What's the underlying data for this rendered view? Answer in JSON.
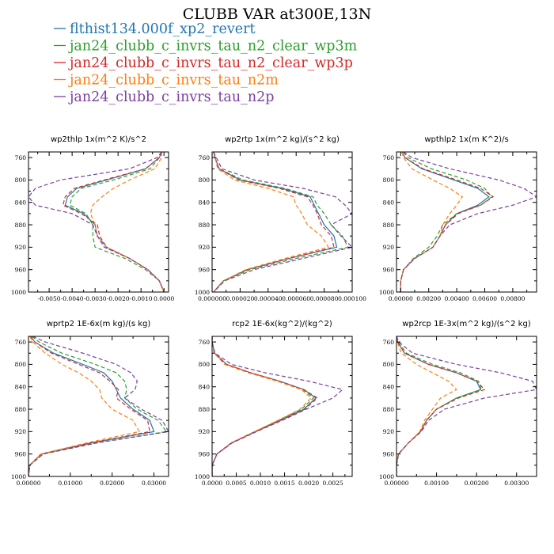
{
  "figure_title": "CLUBB VAR at300E,13N",
  "legend": [
    {
      "name": "flthist134.000f_xp2_revert",
      "color": "#1f77b4",
      "dash": "solid"
    },
    {
      "name": "jan24_clubb_c_invrs_tau_n2_clear_wp3m",
      "color": "#2ca02c",
      "dash": "dashed"
    },
    {
      "name": "jan24_clubb_c_invrs_tau_n2_clear_wp3p",
      "color": "#d62728",
      "dash": "dashed"
    },
    {
      "name": "jan24_clubb_c_invrs_tau_n2m",
      "color": "#ff7f0e",
      "dash": "dashed"
    },
    {
      "name": "jan24_clubb_c_invrs_tau_n2p",
      "color": "#7b3f9e",
      "dash": "dashed"
    }
  ],
  "chart_data": [
    {
      "type": "line",
      "title": "wp2thlp   1x(m^2 K)/s^2",
      "xlim": [
        -0.0059,
        0.0002
      ],
      "ylim": [
        1000,
        750
      ],
      "xticks": [
        -0.005,
        -0.004,
        -0.003,
        -0.002,
        -0.001,
        0
      ],
      "xtick_labels": [
        "-0.0050",
        "-0.0040",
        "-0.0030",
        "-0.0020",
        "-0.0010",
        "0.0000"
      ],
      "yticks": [
        760,
        800,
        840,
        880,
        920,
        960,
        1000
      ],
      "y": [
        750,
        760,
        780,
        800,
        815,
        830,
        845,
        860,
        880,
        900,
        920,
        940,
        960,
        980,
        1000
      ],
      "series": [
        {
          "values": [
            -0.0001,
            -0.0002,
            -0.0008,
            -0.0025,
            -0.0038,
            -0.0042,
            -0.0043,
            -0.0035,
            -0.003,
            -0.0029,
            -0.0025,
            -0.0015,
            -0.0007,
            -0.0002,
            0.0
          ]
        },
        {
          "values": [
            -0.0001,
            -0.0002,
            -0.0006,
            -0.0022,
            -0.0036,
            -0.004,
            -0.0041,
            -0.0034,
            -0.0031,
            -0.0031,
            -0.003,
            -0.0017,
            -0.0008,
            -0.0002,
            0.0
          ]
        },
        {
          "values": [
            -0.0001,
            -0.0002,
            -0.0008,
            -0.0026,
            -0.0039,
            -0.0043,
            -0.0044,
            -0.0036,
            -0.0029,
            -0.0028,
            -0.0025,
            -0.0015,
            -0.0007,
            -0.0002,
            0.0
          ]
        },
        {
          "values": [
            -0.0001,
            -0.0001,
            -0.0004,
            -0.0015,
            -0.0022,
            -0.0027,
            -0.0031,
            -0.0032,
            -0.003,
            -0.0029,
            -0.0025,
            -0.0015,
            -0.0007,
            -0.0002,
            0.0
          ]
        },
        {
          "values": [
            -0.0001,
            -0.0003,
            -0.0015,
            -0.0045,
            -0.0056,
            -0.0059,
            -0.0056,
            -0.004,
            -0.0031,
            -0.0029,
            -0.0026,
            -0.0015,
            -0.0007,
            -0.0002,
            0.0
          ]
        }
      ]
    },
    {
      "type": "line",
      "title": "wp2rtp   1x(m^2 kg)/(s^2 kg)",
      "xlim": [
        0,
        0.0001
      ],
      "ylim": [
        1000,
        750
      ],
      "xticks": [
        0,
        2e-05,
        4e-05,
        6e-05,
        8e-05,
        0.0001
      ],
      "xtick_labels": [
        "0.000000",
        "0.000020",
        "0.000040",
        "0.000060",
        "0.000080",
        "0.000100"
      ],
      "yticks": [
        760,
        800,
        840,
        880,
        920,
        960,
        1000
      ],
      "y": [
        750,
        760,
        780,
        800,
        815,
        830,
        845,
        860,
        880,
        900,
        920,
        940,
        960,
        980,
        1000
      ],
      "series": [
        {
          "values": [
            1e-06,
            2e-06,
            5e-06,
            2e-05,
            5e-05,
            7e-05,
            7.3e-05,
            7.6e-05,
            8e-05,
            8.7e-05,
            8.9e-05,
            5.5e-05,
            2.5e-05,
            8e-06,
            1e-06
          ]
        },
        {
          "values": [
            1e-06,
            2e-06,
            5e-06,
            2.2e-05,
            5.2e-05,
            7.2e-05,
            7.5e-05,
            8e-05,
            8.5e-05,
            9.3e-05,
            9.7e-05,
            6e-05,
            2.7e-05,
            8e-06,
            1e-06
          ]
        },
        {
          "values": [
            1e-06,
            2e-06,
            5e-06,
            1.9e-05,
            4.8e-05,
            6.8e-05,
            7.2e-05,
            7.5e-05,
            7.8e-05,
            8.5e-05,
            8.7e-05,
            5.5e-05,
            2.5e-05,
            8e-06,
            1e-06
          ]
        },
        {
          "values": [
            1e-06,
            2e-06,
            4e-06,
            1.6e-05,
            4e-05,
            5.8e-05,
            6e-05,
            6.4e-05,
            6.8e-05,
            7.8e-05,
            8.3e-05,
            5.2e-05,
            2.4e-05,
            8e-06,
            1e-06
          ]
        },
        {
          "values": [
            1e-06,
            3e-06,
            7e-06,
            3e-05,
            6.5e-05,
            8.8e-05,
            9.5e-05,
            0.0001,
            8.5e-05,
            9.2e-05,
            0.0001,
            6.5e-05,
            3e-05,
            9e-06,
            1e-06
          ]
        }
      ]
    },
    {
      "type": "line",
      "title": "wpthlp2   1x(m K^2)/s",
      "xlim": [
        -0.0003,
        0.0097
      ],
      "ylim": [
        1000,
        750
      ],
      "xticks": [
        0,
        0.002,
        0.004,
        0.006,
        0.008
      ],
      "xtick_labels": [
        "0.00000",
        "0.00200",
        "0.00400",
        "0.00600",
        "0.00800"
      ],
      "yticks": [
        760,
        800,
        840,
        880,
        920,
        960,
        1000
      ],
      "y": [
        750,
        760,
        780,
        800,
        815,
        830,
        845,
        860,
        880,
        900,
        920,
        940,
        960,
        980,
        1000
      ],
      "series": [
        {
          "values": [
            0.0001,
            0.0003,
            0.0015,
            0.0038,
            0.0055,
            0.0063,
            0.0055,
            0.004,
            0.0032,
            0.0028,
            0.0023,
            0.001,
            0.0002,
            0.0,
            0.0
          ]
        },
        {
          "values": [
            0.0002,
            0.0005,
            0.0022,
            0.0047,
            0.006,
            0.0065,
            0.0057,
            0.004,
            0.003,
            0.0026,
            0.002,
            0.0009,
            0.0002,
            0.0,
            0.0
          ]
        },
        {
          "values": [
            0.0001,
            0.0003,
            0.0016,
            0.004,
            0.0057,
            0.0066,
            0.0057,
            0.0041,
            0.0032,
            0.0028,
            0.0023,
            0.001,
            0.0002,
            0.0,
            0.0
          ]
        },
        {
          "values": [
            0.0001,
            0.0002,
            0.0008,
            0.0023,
            0.0035,
            0.0044,
            0.004,
            0.0035,
            0.003,
            0.0028,
            0.0023,
            0.001,
            0.0002,
            0.0,
            0.0
          ]
        },
        {
          "values": [
            0.0002,
            0.0008,
            0.0035,
            0.007,
            0.0088,
            0.0097,
            0.008,
            0.0055,
            0.0035,
            0.0028,
            0.0023,
            0.001,
            0.0002,
            0.0,
            0.0
          ]
        }
      ]
    },
    {
      "type": "line",
      "title": "wprtp2   1E-6x(m kg)/(s kg)",
      "xlim": [
        0,
        0.0335
      ],
      "ylim": [
        1000,
        750
      ],
      "xticks": [
        0,
        0.01,
        0.02,
        0.03
      ],
      "xtick_labels": [
        "0.00000",
        "0.01000",
        "0.02000",
        "0.03000"
      ],
      "yticks": [
        760,
        800,
        840,
        880,
        920,
        960,
        1000
      ],
      "y": [
        750,
        760,
        780,
        800,
        815,
        830,
        845,
        860,
        880,
        900,
        920,
        940,
        960,
        980,
        1000
      ],
      "series": [
        {
          "values": [
            0.0005,
            0.0015,
            0.006,
            0.013,
            0.018,
            0.02,
            0.021,
            0.022,
            0.025,
            0.029,
            0.03,
            0.015,
            0.003,
            0.0003,
            0.0
          ]
        },
        {
          "values": [
            0.0008,
            0.0025,
            0.008,
            0.016,
            0.021,
            0.023,
            0.0235,
            0.023,
            0.026,
            0.031,
            0.033,
            0.016,
            0.0035,
            0.0003,
            0.0
          ]
        },
        {
          "values": [
            0.0005,
            0.0015,
            0.0055,
            0.012,
            0.017,
            0.0195,
            0.0215,
            0.021,
            0.0245,
            0.0285,
            0.029,
            0.015,
            0.003,
            0.0003,
            0.0
          ]
        },
        {
          "values": [
            0.0003,
            0.001,
            0.004,
            0.008,
            0.012,
            0.015,
            0.017,
            0.0175,
            0.02,
            0.025,
            0.0265,
            0.014,
            0.003,
            0.0003,
            0.0
          ]
        },
        {
          "values": [
            0.001,
            0.004,
            0.013,
            0.021,
            0.0245,
            0.026,
            0.0255,
            0.023,
            0.027,
            0.032,
            0.0335,
            0.0165,
            0.0035,
            0.0003,
            0.0
          ]
        }
      ]
    },
    {
      "type": "line",
      "title": "rcp2   1E-6x(kg^2)/(kg^2)",
      "xlim": [
        0,
        0.0029
      ],
      "ylim": [
        1000,
        750
      ],
      "xticks": [
        0,
        0.0005,
        0.001,
        0.0015,
        0.002,
        0.0025
      ],
      "xtick_labels": [
        "0.0000",
        "0.0005",
        "0.0010",
        "0.0015",
        "0.0020",
        "0.0025"
      ],
      "yticks": [
        760,
        800,
        840,
        880,
        920,
        960,
        1000
      ],
      "y": [
        750,
        760,
        780,
        800,
        815,
        830,
        845,
        860,
        880,
        900,
        920,
        940,
        960,
        980,
        1000
      ],
      "series": [
        {
          "values": [
            0.0,
            0.0,
            5e-05,
            0.0003,
            0.0008,
            0.0014,
            0.0019,
            0.00215,
            0.0019,
            0.0014,
            0.0009,
            0.0004,
            0.0001,
            0.0,
            0.0
          ]
        },
        {
          "values": [
            0.0,
            0.0,
            5e-05,
            0.00028,
            0.00078,
            0.00138,
            0.00188,
            0.0021,
            0.00185,
            0.00138,
            0.00088,
            0.0004,
            0.0001,
            0.0,
            0.0
          ]
        },
        {
          "values": [
            0.0,
            0.0,
            5e-05,
            0.0003,
            0.0008,
            0.0014,
            0.0019,
            0.00218,
            0.00192,
            0.00142,
            0.0009,
            0.0004,
            0.0001,
            0.0,
            0.0
          ]
        },
        {
          "values": [
            0.0,
            0.0,
            4e-05,
            0.00026,
            0.00075,
            0.00135,
            0.00185,
            0.00205,
            0.00182,
            0.00136,
            0.00088,
            0.0004,
            0.0001,
            0.0,
            0.0
          ]
        },
        {
          "values": [
            0.0,
            0.0,
            6e-05,
            0.0004,
            0.0011,
            0.002,
            0.0027,
            0.0025,
            0.00195,
            0.00145,
            0.00092,
            0.00042,
            0.0001,
            0.0,
            0.0
          ]
        }
      ]
    },
    {
      "type": "line",
      "title": "wp2rcp   1E-3x(m^2 kg)/(s^2 kg)",
      "xlim": [
        0,
        0.0035
      ],
      "ylim": [
        1000,
        750
      ],
      "xticks": [
        0,
        0.001,
        0.002,
        0.003
      ],
      "xtick_labels": [
        "0.00000",
        "0.00100",
        "0.00200",
        "0.00300"
      ],
      "yticks": [
        760,
        800,
        840,
        880,
        920,
        960,
        1000
      ],
      "y": [
        750,
        760,
        780,
        800,
        815,
        830,
        845,
        860,
        880,
        900,
        920,
        940,
        960,
        980,
        1000
      ],
      "series": [
        {
          "values": [
            0.0,
            3e-05,
            0.0002,
            0.0008,
            0.0015,
            0.002,
            0.0021,
            0.0015,
            0.001,
            0.00075,
            0.0006,
            0.0003,
            5e-05,
            0.0,
            0.0
          ]
        },
        {
          "values": [
            0.0,
            4e-05,
            0.00025,
            0.0009,
            0.0016,
            0.00205,
            0.00212,
            0.0015,
            0.001,
            0.00075,
            0.0006,
            0.0003,
            5e-05,
            0.0,
            0.0
          ]
        },
        {
          "values": [
            0.0,
            3e-05,
            0.0002,
            0.0008,
            0.0015,
            0.002,
            0.0022,
            0.00155,
            0.001,
            0.00075,
            0.0006,
            0.0003,
            5e-05,
            0.0,
            0.0
          ]
        },
        {
          "values": [
            0.0,
            2e-05,
            0.00012,
            0.0005,
            0.0009,
            0.0013,
            0.0015,
            0.0011,
            0.0009,
            0.0007,
            0.00058,
            0.0003,
            5e-05,
            0.0,
            0.0
          ]
        },
        {
          "values": [
            0.0,
            6e-05,
            0.0004,
            0.0015,
            0.0026,
            0.0034,
            0.0035,
            0.0022,
            0.0012,
            0.0008,
            0.00062,
            0.0003,
            5e-05,
            0.0,
            0.0
          ]
        }
      ]
    }
  ]
}
